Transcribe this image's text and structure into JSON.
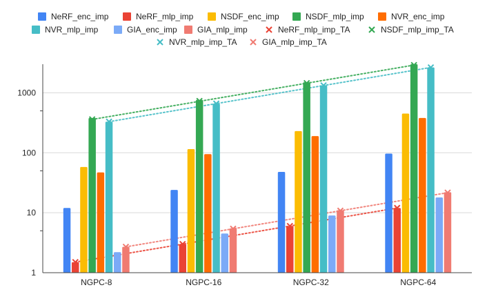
{
  "chart_data": {
    "type": "bar",
    "title": "",
    "xlabel": "",
    "ylabel": "",
    "y_scale": "log",
    "ylim": [
      1,
      3000
    ],
    "y_ticks": [
      1,
      10,
      100,
      1000
    ],
    "y_tick_labels": [
      "1",
      "10",
      "100",
      "1000"
    ],
    "grid": true,
    "legend_position": "top",
    "categories": [
      "NGPC-8",
      "NGPC-16",
      "NGPC-32",
      "NGPC-64"
    ],
    "series": [
      {
        "name": "NeRF_enc_imp",
        "kind": "bar",
        "color": "#4285f4",
        "values": [
          12,
          24,
          48,
          97
        ]
      },
      {
        "name": "NeRF_mlp_imp",
        "kind": "bar",
        "color": "#ea4335",
        "values": [
          1.5,
          3,
          6,
          12
        ]
      },
      {
        "name": "NSDF_enc_imp",
        "kind": "bar",
        "color": "#fbbc04",
        "values": [
          58,
          115,
          230,
          450
        ]
      },
      {
        "name": "NSDF_mlp_imp",
        "kind": "bar",
        "color": "#34a853",
        "values": [
          380,
          760,
          1500,
          3000
        ]
      },
      {
        "name": "NVR_enc_imp",
        "kind": "bar",
        "color": "#ff6d01",
        "values": [
          47,
          95,
          190,
          380
        ]
      },
      {
        "name": "NVR_mlp_imp",
        "kind": "bar",
        "color": "#46bdc6",
        "values": [
          330,
          660,
          1330,
          2650
        ]
      },
      {
        "name": "GIA_enc_imp",
        "kind": "bar",
        "color": "#7baaf7",
        "values": [
          2.2,
          4.5,
          9,
          18
        ]
      },
      {
        "name": "GIA_mlp_imp",
        "kind": "bar",
        "color": "#f07b72",
        "values": [
          2.7,
          5.5,
          11,
          22
        ]
      },
      {
        "name": "NeRF_mlp_imp_TA",
        "kind": "marker",
        "color": "#ea4335",
        "values": [
          1.5,
          3,
          6,
          12
        ]
      },
      {
        "name": "NSDF_mlp_imp_TA",
        "kind": "marker",
        "color": "#34a853",
        "values": [
          360,
          730,
          1450,
          2900
        ]
      },
      {
        "name": "NVR_mlp_imp_TA",
        "kind": "marker",
        "color": "#46bdc6",
        "values": [
          330,
          660,
          1330,
          2650
        ]
      },
      {
        "name": "GIA_mlp_imp_TA",
        "kind": "marker",
        "color": "#f07b72",
        "values": [
          2.7,
          5.4,
          10.8,
          21.6
        ]
      }
    ],
    "trendlines": [
      {
        "series": "NeRF_mlp_imp_TA",
        "style": "dotted"
      },
      {
        "series": "NSDF_mlp_imp_TA",
        "style": "dotted"
      },
      {
        "series": "NVR_mlp_imp_TA",
        "style": "dotted"
      },
      {
        "series": "GIA_mlp_imp_TA",
        "style": "dotted"
      }
    ]
  }
}
